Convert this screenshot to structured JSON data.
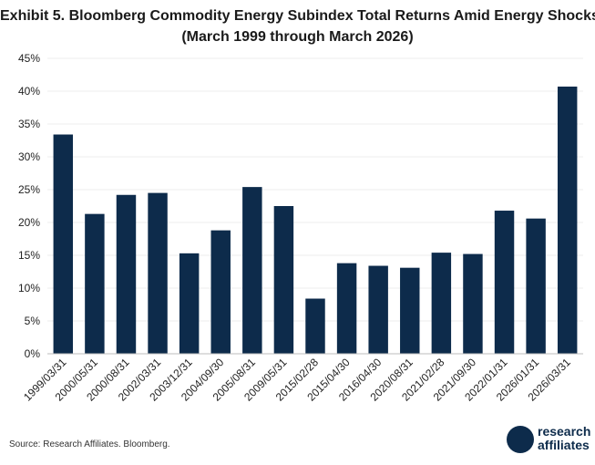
{
  "chart_data": {
    "type": "bar",
    "title": "Exhibit 5. Bloomberg Commodity Energy Subindex Total Returns Amid Energy Shocks",
    "subtitle": "(March 1999 through March 2026)",
    "categories": [
      "1999/03/31",
      "2000/05/31",
      "2000/08/31",
      "2002/03/31",
      "2003/12/31",
      "2004/09/30",
      "2005/08/31",
      "2009/05/31",
      "2015/02/28",
      "2015/04/30",
      "2016/04/30",
      "2020/08/31",
      "2021/02/28",
      "2021/09/30",
      "2022/01/31",
      "2026/01/31",
      "2026/03/31"
    ],
    "values": [
      33.4,
      21.3,
      24.2,
      24.5,
      15.3,
      18.8,
      25.4,
      22.5,
      8.4,
      13.8,
      13.4,
      13.1,
      15.4,
      15.2,
      21.8,
      20.6,
      40.7
    ],
    "ylim": [
      0,
      45
    ],
    "yticks": [
      "0%",
      "5%",
      "10%",
      "15%",
      "20%",
      "25%",
      "30%",
      "35%",
      "40%",
      "45%"
    ],
    "grid": true,
    "bar_color": "#0d2b4b"
  },
  "source": "Source: Research Affiliates. Bloomberg.",
  "logo": {
    "line1": "research",
    "line2": "affiliates"
  }
}
